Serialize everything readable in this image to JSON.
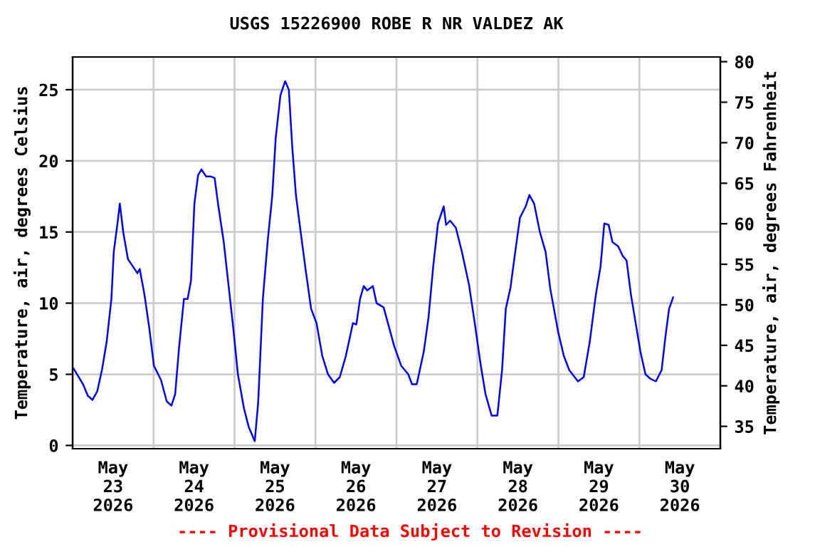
{
  "chart_data": {
    "type": "line",
    "title": "USGS 15226900 ROBE R NR VALDEZ AK",
    "ylabel": "Temperature, air, degrees Celsius",
    "y2label": "Temperature, air, degrees Fahrenheit",
    "annotations": [
      "---- Provisional Data Subject to Revision ----"
    ],
    "x": [
      "2026-05-23T00:18",
      "2026-05-23T03:06",
      "2026-05-23T04:30",
      "2026-05-23T05:54",
      "2026-05-23T07:18",
      "2026-05-23T08:42",
      "2026-05-23T10:06",
      "2026-05-23T11:30",
      "2026-05-23T12:12",
      "2026-05-23T13:18",
      "2026-05-23T14:00",
      "2026-05-23T15:00",
      "2026-05-23T16:24",
      "2026-05-23T17:48",
      "2026-05-23T19:12",
      "2026-05-23T19:54",
      "2026-05-23T21:18",
      "2026-05-23T22:42",
      "2026-05-24T00:06",
      "2026-05-24T02:12",
      "2026-05-24T03:54",
      "2026-05-24T05:18",
      "2026-05-24T06:24",
      "2026-05-24T07:36",
      "2026-05-24T09:00",
      "2026-05-24T10:06",
      "2026-05-24T11:06",
      "2026-05-24T12:06",
      "2026-05-24T13:12",
      "2026-05-24T14:12",
      "2026-05-24T15:36",
      "2026-05-24T17:00",
      "2026-05-24T18:06",
      "2026-05-24T19:06",
      "2026-05-24T20:48",
      "2026-05-24T22:12",
      "2026-05-24T23:36",
      "2026-05-25T01:00",
      "2026-05-25T02:48",
      "2026-05-25T04:12",
      "2026-05-25T06:00",
      "2026-05-25T07:00",
      "2026-05-25T08:24",
      "2026-05-25T09:48",
      "2026-05-25T11:12",
      "2026-05-25T12:12",
      "2026-05-25T13:36",
      "2026-05-25T15:00",
      "2026-05-25T16:06",
      "2026-05-25T17:06",
      "2026-05-25T18:12",
      "2026-05-25T19:36",
      "2026-05-25T21:06",
      "2026-05-25T22:42",
      "2026-05-26T00:18",
      "2026-05-26T02:00",
      "2026-05-26T03:42",
      "2026-05-26T05:30",
      "2026-05-26T07:12",
      "2026-05-26T09:00",
      "2026-05-26T11:06",
      "2026-05-26T12:06",
      "2026-05-26T13:12",
      "2026-05-26T14:18",
      "2026-05-26T15:18",
      "2026-05-26T17:00",
      "2026-05-26T18:06",
      "2026-05-26T20:12",
      "2026-05-26T23:18",
      "2026-05-27T01:24",
      "2026-05-27T03:30",
      "2026-05-27T04:36",
      "2026-05-27T06:00",
      "2026-05-27T08:06",
      "2026-05-27T09:30",
      "2026-05-27T10:54",
      "2026-05-27T12:18",
      "2026-05-27T14:00",
      "2026-05-27T14:42",
      "2026-05-27T15:54",
      "2026-05-27T17:36",
      "2026-05-27T19:24",
      "2026-05-27T21:30",
      "2026-05-27T23:12",
      "2026-05-28T01:00",
      "2026-05-28T02:24",
      "2026-05-28T04:12",
      "2026-05-28T05:54",
      "2026-05-28T07:18",
      "2026-05-28T08:24",
      "2026-05-28T09:48",
      "2026-05-28T11:12",
      "2026-05-28T12:36",
      "2026-05-28T14:18",
      "2026-05-28T15:24",
      "2026-05-28T16:48",
      "2026-05-28T18:30",
      "2026-05-28T20:12",
      "2026-05-28T21:36",
      "2026-05-28T23:54",
      "2026-05-29T01:36",
      "2026-05-29T03:12",
      "2026-05-29T05:48",
      "2026-05-29T07:30",
      "2026-05-29T09:18",
      "2026-05-29T11:06",
      "2026-05-29T12:30",
      "2026-05-29T13:36",
      "2026-05-29T14:54",
      "2026-05-29T16:00",
      "2026-05-29T17:42",
      "2026-05-29T19:06",
      "2026-05-29T20:12",
      "2026-05-29T21:30",
      "2026-05-29T22:54",
      "2026-05-30T00:18",
      "2026-05-30T01:48",
      "2026-05-30T03:12",
      "2026-05-30T04:54",
      "2026-05-30T06:36",
      "2026-05-30T07:42",
      "2026-05-30T08:48",
      "2026-05-30T10:00"
    ],
    "series": [
      {
        "color": "#0000ff",
        "values": [
          5.4,
          4.3,
          3.5,
          3.2,
          3.8,
          5.3,
          7.3,
          10.3,
          13.6,
          15.6,
          17.0,
          15.0,
          13.1,
          12.6,
          12.1,
          12.4,
          10.6,
          8.3,
          5.6,
          4.6,
          3.1,
          2.8,
          3.6,
          7.0,
          10.3,
          10.3,
          11.6,
          17.0,
          19.0,
          19.4,
          18.9,
          18.9,
          18.8,
          17.0,
          14.3,
          11.3,
          8.3,
          5.0,
          2.6,
          1.3,
          0.3,
          3.0,
          10.3,
          14.3,
          17.6,
          21.6,
          24.6,
          25.6,
          25.0,
          21.0,
          17.6,
          15.0,
          12.3,
          9.6,
          8.6,
          6.3,
          5.0,
          4.4,
          4.8,
          6.3,
          8.6,
          8.5,
          10.3,
          11.2,
          10.9,
          11.2,
          10.0,
          9.7,
          7.0,
          5.6,
          5.0,
          4.3,
          4.3,
          6.6,
          9.0,
          12.6,
          15.6,
          16.8,
          15.5,
          15.8,
          15.3,
          13.6,
          11.3,
          8.6,
          5.6,
          3.6,
          2.1,
          2.1,
          5.3,
          9.6,
          11.1,
          13.6,
          16.0,
          16.8,
          17.6,
          17.0,
          15.0,
          13.6,
          11.0,
          8.0,
          6.3,
          5.3,
          4.5,
          4.8,
          7.3,
          10.6,
          12.6,
          15.6,
          15.5,
          14.3,
          14.0,
          13.3,
          13.0,
          10.6,
          8.6,
          6.6,
          5.0,
          4.7,
          4.5,
          5.3,
          7.6,
          9.6,
          10.4
        ]
      }
    ],
    "xlim": [
      "2026-05-23T00:00",
      "2026-05-31T00:00"
    ],
    "xticks": [
      {
        "value": "2026-05-23T00:00",
        "label": null
      },
      {
        "value": "2026-05-23T12:00",
        "label": "May\n23\n2026"
      },
      {
        "value": "2026-05-24T00:00",
        "label": null
      },
      {
        "value": "2026-05-24T12:00",
        "label": "May\n24\n2026"
      },
      {
        "value": "2026-05-25T00:00",
        "label": null
      },
      {
        "value": "2026-05-25T12:00",
        "label": "May\n25\n2026"
      },
      {
        "value": "2026-05-26T00:00",
        "label": null
      },
      {
        "value": "2026-05-26T12:00",
        "label": "May\n26\n2026"
      },
      {
        "value": "2026-05-27T00:00",
        "label": null
      },
      {
        "value": "2026-05-27T12:00",
        "label": "May\n27\n2026"
      },
      {
        "value": "2026-05-28T00:00",
        "label": null
      },
      {
        "value": "2026-05-28T12:00",
        "label": "May\n28\n2026"
      },
      {
        "value": "2026-05-29T00:00",
        "label": null
      },
      {
        "value": "2026-05-29T12:00",
        "label": "May\n29\n2026"
      },
      {
        "value": "2026-05-30T00:00",
        "label": null
      },
      {
        "value": "2026-05-30T12:00",
        "label": "May\n30\n2026"
      },
      {
        "value": "2026-05-31T00:00",
        "label": null
      }
    ],
    "ylim": [
      -0.23,
      27.3
    ],
    "yticks": [
      0,
      5,
      10,
      15,
      20,
      25
    ],
    "y2lim": [
      32.24,
      80.58
    ],
    "y2ticks": [
      35,
      40,
      45,
      50,
      55,
      60,
      65,
      70,
      75,
      80
    ],
    "grid": true,
    "legend": false,
    "marker": "none",
    "line_style": "solid"
  }
}
